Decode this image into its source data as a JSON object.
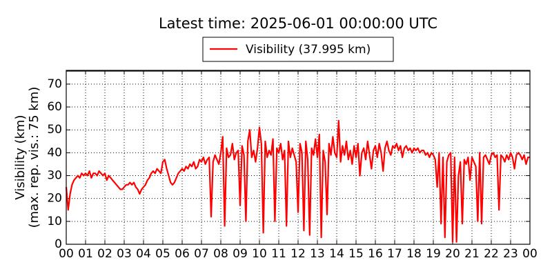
{
  "chart_data": {
    "type": "line",
    "title": "Latest time: 2025-06-01 00:00:00 UTC",
    "ylabel": [
      "Visibility (km)",
      "(max. rep. vis.: 75 km)"
    ],
    "xlim": [
      0,
      24
    ],
    "ylim": [
      0,
      76
    ],
    "xticks": [
      {
        "value": 0,
        "label": "00"
      },
      {
        "value": 1,
        "label": "01"
      },
      {
        "value": 2,
        "label": "02"
      },
      {
        "value": 3,
        "label": "03"
      },
      {
        "value": 4,
        "label": "04"
      },
      {
        "value": 5,
        "label": "05"
      },
      {
        "value": 6,
        "label": "06"
      },
      {
        "value": 7,
        "label": "07"
      },
      {
        "value": 8,
        "label": "08"
      },
      {
        "value": 9,
        "label": "09"
      },
      {
        "value": 10,
        "label": "10"
      },
      {
        "value": 11,
        "label": "11"
      },
      {
        "value": 12,
        "label": "12"
      },
      {
        "value": 13,
        "label": "13"
      },
      {
        "value": 14,
        "label": "14"
      },
      {
        "value": 15,
        "label": "15"
      },
      {
        "value": 16,
        "label": "16"
      },
      {
        "value": 17,
        "label": "17"
      },
      {
        "value": 18,
        "label": "18"
      },
      {
        "value": 19,
        "label": "19"
      },
      {
        "value": 20,
        "label": "20"
      },
      {
        "value": 21,
        "label": "21"
      },
      {
        "value": 22,
        "label": "22"
      },
      {
        "value": 23,
        "label": "23"
      },
      {
        "value": 24,
        "label": "00"
      }
    ],
    "yticks": [
      0,
      10,
      20,
      30,
      40,
      50,
      60,
      70
    ],
    "grid": true,
    "legend": "top",
    "x": [
      0,
      0.1,
      0.2,
      0.3,
      0.4,
      0.5,
      0.6,
      0.7,
      0.8,
      0.9,
      1,
      1.1,
      1.2,
      1.3,
      1.4,
      1.5,
      1.6,
      1.7,
      1.8,
      1.9,
      2,
      2.1,
      2.2,
      2.3,
      2.4,
      2.5,
      2.6,
      2.7,
      2.8,
      2.9,
      3,
      3.1,
      3.2,
      3.3,
      3.4,
      3.5,
      3.6,
      3.7,
      3.8,
      3.9,
      4,
      4.1,
      4.2,
      4.3,
      4.4,
      4.5,
      4.6,
      4.7,
      4.8,
      4.9,
      5,
      5.1,
      5.2,
      5.3,
      5.4,
      5.5,
      5.6,
      5.7,
      5.8,
      5.9,
      6,
      6.1,
      6.2,
      6.3,
      6.4,
      6.5,
      6.6,
      6.7,
      6.8,
      6.9,
      7,
      7.1,
      7.2,
      7.3,
      7.4,
      7.5,
      7.6,
      7.7,
      7.8,
      7.9,
      8,
      8.1,
      8.2,
      8.3,
      8.4,
      8.5,
      8.6,
      8.7,
      8.8,
      8.9,
      9,
      9.1,
      9.2,
      9.3,
      9.4,
      9.5,
      9.6,
      9.7,
      9.8,
      9.9,
      10,
      10.1,
      10.2,
      10.3,
      10.4,
      10.5,
      10.6,
      10.7,
      10.8,
      10.9,
      11,
      11.1,
      11.2,
      11.3,
      11.4,
      11.5,
      11.6,
      11.7,
      11.8,
      11.9,
      12,
      12.1,
      12.2,
      12.3,
      12.4,
      12.5,
      12.6,
      12.7,
      12.8,
      12.9,
      13,
      13.1,
      13.2,
      13.3,
      13.4,
      13.5,
      13.6,
      13.7,
      13.8,
      13.9,
      14,
      14.1,
      14.2,
      14.3,
      14.4,
      14.5,
      14.6,
      14.7,
      14.8,
      14.9,
      15,
      15.1,
      15.2,
      15.3,
      15.4,
      15.5,
      15.6,
      15.7,
      15.8,
      15.9,
      16,
      16.1,
      16.2,
      16.3,
      16.4,
      16.5,
      16.6,
      16.7,
      16.8,
      16.9,
      17,
      17.1,
      17.2,
      17.3,
      17.4,
      17.5,
      17.6,
      17.7,
      17.8,
      17.9,
      18,
      18.1,
      18.2,
      18.3,
      18.4,
      18.5,
      18.6,
      18.7,
      18.8,
      18.9,
      19,
      19.1,
      19.2,
      19.3,
      19.4,
      19.5,
      19.6,
      19.7,
      19.8,
      19.9,
      20,
      20.1,
      20.2,
      20.3,
      20.4,
      20.5,
      20.6,
      20.7,
      20.8,
      20.9,
      21,
      21.1,
      21.2,
      21.3,
      21.4,
      21.5,
      21.6,
      21.7,
      21.8,
      21.9,
      22,
      22.1,
      22.2,
      22.3,
      22.4,
      22.5,
      22.6,
      22.7,
      22.8,
      22.9,
      23,
      23.1,
      23.2,
      23.3,
      23.4,
      23.5,
      23.6,
      23.7,
      23.8,
      23.9,
      24
    ],
    "series": [
      {
        "name": "Visibility (37.995 km)",
        "color": "#ff0000",
        "values": [
          25,
          15,
          22,
          26,
          28,
          29,
          30,
          29,
          31,
          30,
          31,
          30,
          32,
          29,
          31,
          31,
          30,
          32,
          31,
          30,
          31,
          28,
          30,
          29,
          28,
          27,
          26,
          25,
          24,
          24,
          25,
          26,
          26,
          27,
          26,
          27,
          25,
          24,
          22,
          24,
          25,
          26,
          28,
          29,
          31,
          32,
          31,
          33,
          32,
          31,
          36,
          37,
          33,
          30,
          27,
          26,
          27,
          29,
          31,
          32,
          33,
          32,
          34,
          33,
          35,
          34,
          36,
          33,
          34,
          37,
          36,
          38,
          35,
          37,
          38,
          12,
          36,
          39,
          37,
          35,
          40,
          47,
          8,
          42,
          38,
          39,
          44,
          37,
          40,
          41,
          17,
          43,
          39,
          10,
          45,
          50,
          38,
          41,
          36,
          42,
          51,
          44,
          5,
          45,
          38,
          41,
          39,
          46,
          10,
          42,
          40,
          44,
          37,
          41,
          8,
          45,
          38,
          42,
          39,
          36,
          14,
          44,
          40,
          6,
          45,
          37,
          4,
          42,
          39,
          46,
          38,
          48,
          3,
          41,
          36,
          13,
          44,
          39,
          47,
          40,
          38,
          54,
          36,
          43,
          39,
          45,
          37,
          41,
          35,
          43,
          38,
          44,
          30,
          40,
          42,
          37,
          45,
          39,
          33,
          41,
          43,
          38,
          44,
          40,
          32,
          42,
          45,
          41,
          39,
          43,
          42,
          44,
          41,
          43,
          38,
          42,
          43,
          41,
          42,
          40,
          42,
          41,
          42,
          40,
          41,
          41,
          39,
          40,
          38,
          40,
          39,
          37,
          25,
          40,
          9,
          38,
          3,
          36,
          39,
          40,
          1,
          38,
          1,
          30,
          36,
          9,
          37,
          35,
          38,
          28,
          38,
          36,
          34,
          10,
          40,
          9,
          38,
          39,
          37,
          35,
          39,
          40,
          38,
          39,
          15,
          39,
          38,
          36,
          39,
          37,
          40,
          38,
          33,
          39,
          40,
          39,
          37,
          39,
          35,
          38,
          38
        ]
      }
    ]
  }
}
